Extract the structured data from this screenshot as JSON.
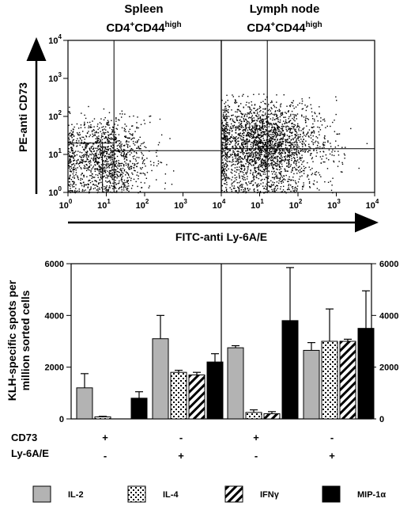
{
  "flow": {
    "panels": [
      {
        "title_line1": "Spleen",
        "title_line2": "CD4",
        "title_sup1": "+",
        "title_mid": "CD44",
        "title_sup2": "high"
      },
      {
        "title_line1": "Lymph node",
        "title_line2": "CD4",
        "title_sup1": "+",
        "title_mid": "CD44",
        "title_sup2": "high"
      }
    ],
    "ylabel": "PE-anti CD73",
    "xlabel": "FITC-anti Ly-6A/E",
    "tick_exponents": [
      "0",
      "1",
      "2",
      "3",
      "4"
    ],
    "tick_base": "10"
  },
  "chart_data": {
    "type": "bar",
    "ylabel_line1": "KLH-specific spots per",
    "ylabel_line2": "million sorted cells",
    "ylim": [
      0,
      6000
    ],
    "yticks": [
      "0",
      "2000",
      "4000",
      "6000"
    ],
    "categories": [
      "CD73+ Ly-6A/E-",
      "CD73- Ly-6A/E+",
      "CD73+ Ly-6A/E-",
      "CD73- Ly-6A/E+"
    ],
    "series": [
      {
        "name": "IL-2",
        "values": [
          1200,
          3100,
          2750,
          2650
        ],
        "errors": [
          550,
          900,
          80,
          300
        ],
        "color": "#b3b3b3"
      },
      {
        "name": "IL-4",
        "values": [
          80,
          1800,
          250,
          3000
        ],
        "errors": [
          20,
          80,
          100,
          1250
        ],
        "color": "#ffffff"
      },
      {
        "name": "IFNγ",
        "values": [
          0,
          1700,
          200,
          3000
        ],
        "errors": [
          0,
          100,
          80,
          80
        ],
        "color": "#ffffff"
      },
      {
        "name": "MIP-1α",
        "values": [
          800,
          2200,
          3800,
          3500
        ],
        "errors": [
          250,
          320,
          2050,
          1450
        ],
        "color": "#000000"
      }
    ],
    "conditions": {
      "row1_label": "CD73",
      "row2_label": "Ly-6A/E",
      "row1": [
        "+",
        "-",
        "+",
        "-"
      ],
      "row2": [
        "-",
        "+",
        "-",
        "+"
      ]
    }
  }
}
